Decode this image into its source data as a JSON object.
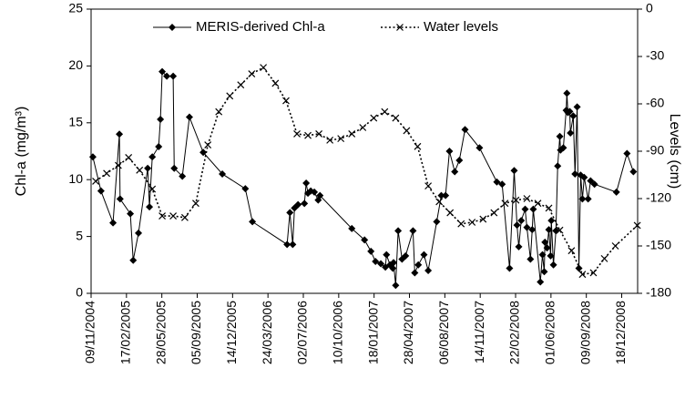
{
  "chart_data": {
    "type": "line",
    "y_label": "Chl-a (mg/m³)",
    "y2_label": "Levels (cm)",
    "legend": "top",
    "xlim": [
      "09/11/2004",
      "01/02/2009"
    ],
    "xticks": [
      "09/11/2004",
      "17/02/2005",
      "28/05/2005",
      "05/09/2005",
      "14/12/2005",
      "24/03/2006",
      "02/07/2006",
      "10/10/2006",
      "18/01/2007",
      "28/04/2007",
      "06/08/2007",
      "14/11/2007",
      "22/02/2008",
      "01/06/2008",
      "09/09/2008",
      "18/12/2008"
    ],
    "ylim": [
      0,
      25
    ],
    "yticks": [
      0,
      5,
      10,
      15,
      20,
      25
    ],
    "y2lim": [
      -180,
      0
    ],
    "y2ticks": [
      -180,
      -150,
      -120,
      -90,
      -60,
      -30,
      0
    ],
    "series": [
      {
        "name": "MERIS-derived Chl-a",
        "color": "#000000",
        "line_style": "solid",
        "marker": "diamond",
        "x": [
          "14/11/2004",
          "07/12/2004",
          "10/01/2005",
          "28/01/2005",
          "30/01/2005",
          "28/02/2005",
          "08/03/2005",
          "23/03/2005",
          "18/04/2005",
          "23/04/2005",
          "01/05/2005",
          "19/05/2005",
          "24/05/2005",
          "29/05/2005",
          "11/06/2005",
          "29/06/2005",
          "02/07/2005",
          "25/07/2005",
          "14/08/2005",
          "22/09/2005",
          "15/11/2005",
          "19/01/2006",
          "08/02/2006",
          "17/05/2006",
          "25/05/2006",
          "02/06/2006",
          "07/06/2006",
          "17/06/2006",
          "05/07/2006",
          "10/07/2006",
          "15/07/2006",
          "23/07/2006",
          "02/08/2006",
          "13/08/2006",
          "18/08/2006",
          "16/11/2006",
          "22/12/2006",
          "09/01/2007",
          "22/01/2007",
          "06/02/2007",
          "19/02/2007",
          "22/02/2007",
          "04/03/2007",
          "12/03/2007",
          "14/03/2007",
          "20/03/2007",
          "27/03/2007",
          "07/04/2007",
          "17/04/2007",
          "08/05/2007",
          "13/05/2007",
          "23/05/2007",
          "08/06/2007",
          "20/06/2007",
          "14/07/2007",
          "27/07/2007",
          "08/08/2007",
          "19/08/2007",
          "03/09/2007",
          "16/09/2007",
          "02/10/2007",
          "12/11/2007",
          "31/12/2007",
          "15/01/2008",
          "05/02/2008",
          "18/02/2008",
          "26/02/2008",
          "02/03/2008",
          "09/03/2008",
          "20/03/2008",
          "25/03/2008",
          "04/04/2008",
          "09/04/2008",
          "12/04/2008",
          "02/05/2008",
          "08/05/2008",
          "13/05/2008",
          "15/05/2008",
          "21/05/2008",
          "26/05/2008",
          "31/05/2008",
          "02/06/2008",
          "08/06/2008",
          "15/06/2008",
          "20/06/2008",
          "26/06/2008",
          "28/06/2008",
          "06/07/2008",
          "14/07/2008",
          "16/07/2008",
          "19/07/2008",
          "24/07/2008",
          "26/07/2008",
          "03/08/2008",
          "08/08/2008",
          "14/08/2008",
          "19/08/2008",
          "24/08/2008",
          "29/08/2008",
          "03/09/2008",
          "14/09/2008",
          "21/09/2008",
          "02/10/2008",
          "03/12/2008",
          "02/01/2009",
          "20/01/2009"
        ],
        "values": [
          12.0,
          9.0,
          6.2,
          14.0,
          8.3,
          7.0,
          2.9,
          5.3,
          11.0,
          7.6,
          12.0,
          12.9,
          15.3,
          19.5,
          19.1,
          19.1,
          11.0,
          10.3,
          15.5,
          12.4,
          10.5,
          9.2,
          6.3,
          4.3,
          7.1,
          4.3,
          7.5,
          7.8,
          7.9,
          9.7,
          8.8,
          9.0,
          8.9,
          8.2,
          8.6,
          5.7,
          4.7,
          3.7,
          2.8,
          2.6,
          2.3,
          3.4,
          2.5,
          2.2,
          2.7,
          0.7,
          5.5,
          3.0,
          3.3,
          5.5,
          1.8,
          2.5,
          3.4,
          2.0,
          6.3,
          8.6,
          8.6,
          12.5,
          10.7,
          11.7,
          14.4,
          12.8,
          9.8,
          9.6,
          2.2,
          10.8,
          6.0,
          4.1,
          6.4,
          7.4,
          5.8,
          3.0,
          5.6,
          7.4,
          1.0,
          3.4,
          1.9,
          4.5,
          4.0,
          5.6,
          3.3,
          6.4,
          2.5,
          5.5,
          11.2,
          13.8,
          12.6,
          12.8,
          16.1,
          17.6,
          15.9,
          16.0,
          14.1,
          15.6,
          10.5,
          16.4,
          2.2,
          10.4,
          8.3,
          10.2,
          8.3,
          9.9,
          9.6,
          8.9,
          12.3,
          10.7
        ]
      },
      {
        "name": "Water levels",
        "color": "#000000",
        "line_style": "dotted",
        "marker": "x",
        "axis": "y2",
        "x": [
          "22/11/2004",
          "23/12/2004",
          "25/01/2005",
          "23/02/2005",
          "26/03/2005",
          "01/05/2005",
          "29/05/2005",
          "29/06/2005",
          "01/08/2005",
          "01/09/2005",
          "05/10/2005",
          "05/11/2005",
          "06/12/2005",
          "06/01/2006",
          "06/02/2006",
          "11/03/2006",
          "14/04/2006",
          "14/05/2006",
          "14/06/2006",
          "15/07/2006",
          "15/08/2006",
          "15/09/2006",
          "16/10/2006",
          "16/11/2006",
          "17/12/2006",
          "17/01/2007",
          "17/02/2007",
          "20/03/2007",
          "20/04/2007",
          "21/05/2007",
          "20/06/2007",
          "21/07/2007",
          "21/08/2007",
          "21/09/2007",
          "22/10/2007",
          "22/11/2007",
          "23/12/2007",
          "23/01/2008",
          "23/02/2008",
          "25/03/2008",
          "25/04/2008",
          "26/05/2008",
          "26/06/2008",
          "29/07/2008",
          "29/08/2008",
          "29/09/2008",
          "30/10/2008",
          "30/11/2008",
          "31/01/2009"
        ],
        "values": [
          -109,
          -104,
          -99,
          -94,
          -102,
          -114,
          -131,
          -131,
          -132,
          -123,
          -86,
          -65,
          -55,
          -48,
          -41,
          -37,
          -47,
          -58,
          -79,
          -80,
          -79,
          -83,
          -82,
          -79,
          -75,
          -69,
          -65,
          -69,
          -77,
          -87,
          -112,
          -122,
          -129,
          -136,
          -135,
          -133,
          -129,
          -123,
          -121,
          -120,
          -123,
          -126,
          -140,
          -153,
          -168,
          -167,
          -158,
          -150,
          -137
        ]
      }
    ]
  }
}
